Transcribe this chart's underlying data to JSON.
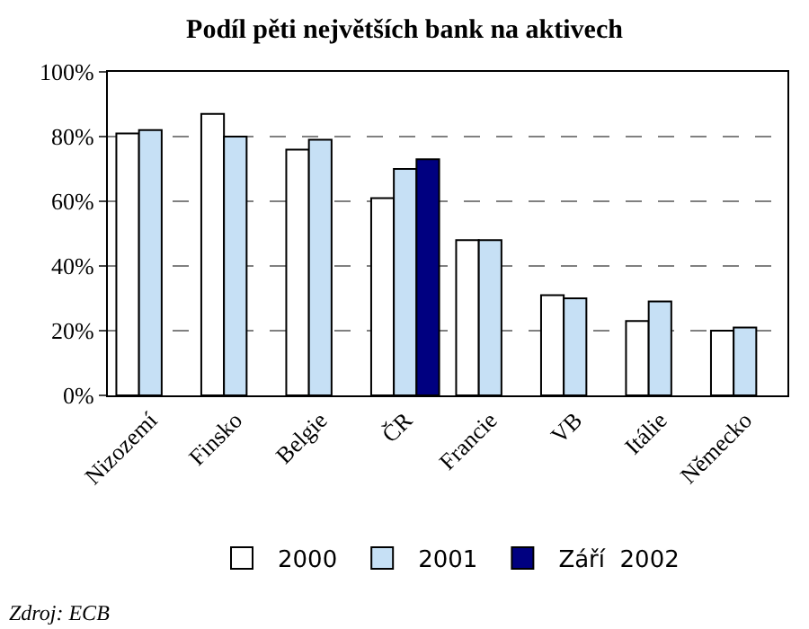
{
  "chart_data": {
    "type": "bar",
    "title": "Podíl pěti největších bank na aktivech",
    "categories": [
      "Nizozemí",
      "Finsko",
      "Belgie",
      "ČR",
      "Francie",
      "VB",
      "Itálie",
      "Německo"
    ],
    "series": [
      {
        "name": "2000",
        "color": "#ffffff",
        "values": [
          81,
          87,
          76,
          61,
          48,
          31,
          23,
          20
        ]
      },
      {
        "name": "2001",
        "color": "#c6e0f5",
        "values": [
          82,
          80,
          79,
          70,
          48,
          30,
          29,
          21
        ]
      },
      {
        "name": "Září  2002",
        "color": "#000080",
        "values": [
          null,
          null,
          null,
          73,
          null,
          null,
          null,
          null
        ]
      }
    ],
    "ylim": [
      0,
      100
    ],
    "yticks": [
      {
        "value": 0,
        "label": "0%"
      },
      {
        "value": 20,
        "label": "20%"
      },
      {
        "value": 40,
        "label": "40%"
      },
      {
        "value": 60,
        "label": "60%"
      },
      {
        "value": 80,
        "label": "80%"
      },
      {
        "value": 100,
        "label": "100%"
      }
    ],
    "grid": "y",
    "legend": "bottom",
    "annotations": [
      "Zdroj: ECB"
    ]
  }
}
